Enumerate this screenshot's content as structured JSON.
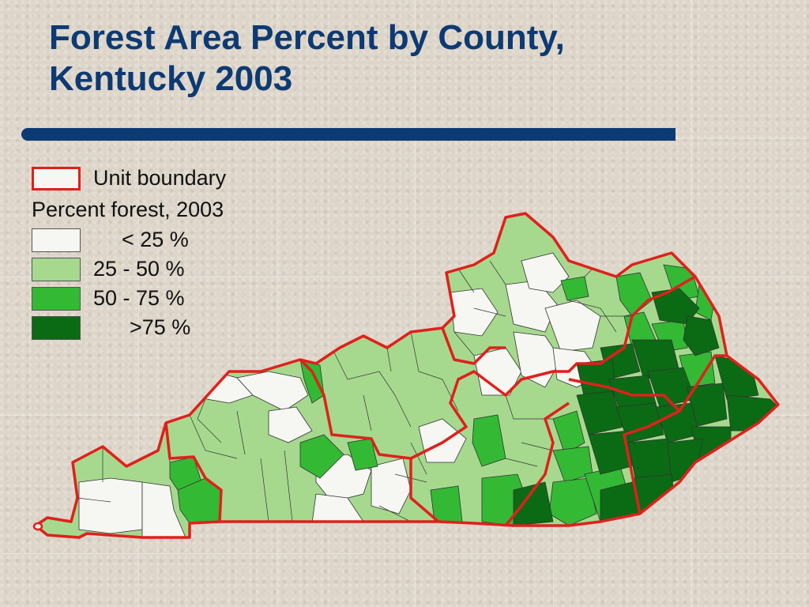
{
  "title_line1": "Forest Area Percent by County,",
  "title_line2": "Kentucky 2003",
  "legend": {
    "unit_boundary_label": "Unit boundary",
    "heading": "Percent forest, 2003",
    "classes": [
      {
        "label": "< 25 %",
        "color": "#f6f6f2"
      },
      {
        "label": "25 - 50 %",
        "color": "#a6d98e"
      },
      {
        "label": "50 - 75 %",
        "color": "#34b934"
      },
      {
        "label": ">75 %",
        "color": "#0b6a14"
      }
    ],
    "unit_boundary_color": "#e0201c"
  },
  "colors": {
    "title": "#0d3a73",
    "background": "#ddd5c9"
  }
}
